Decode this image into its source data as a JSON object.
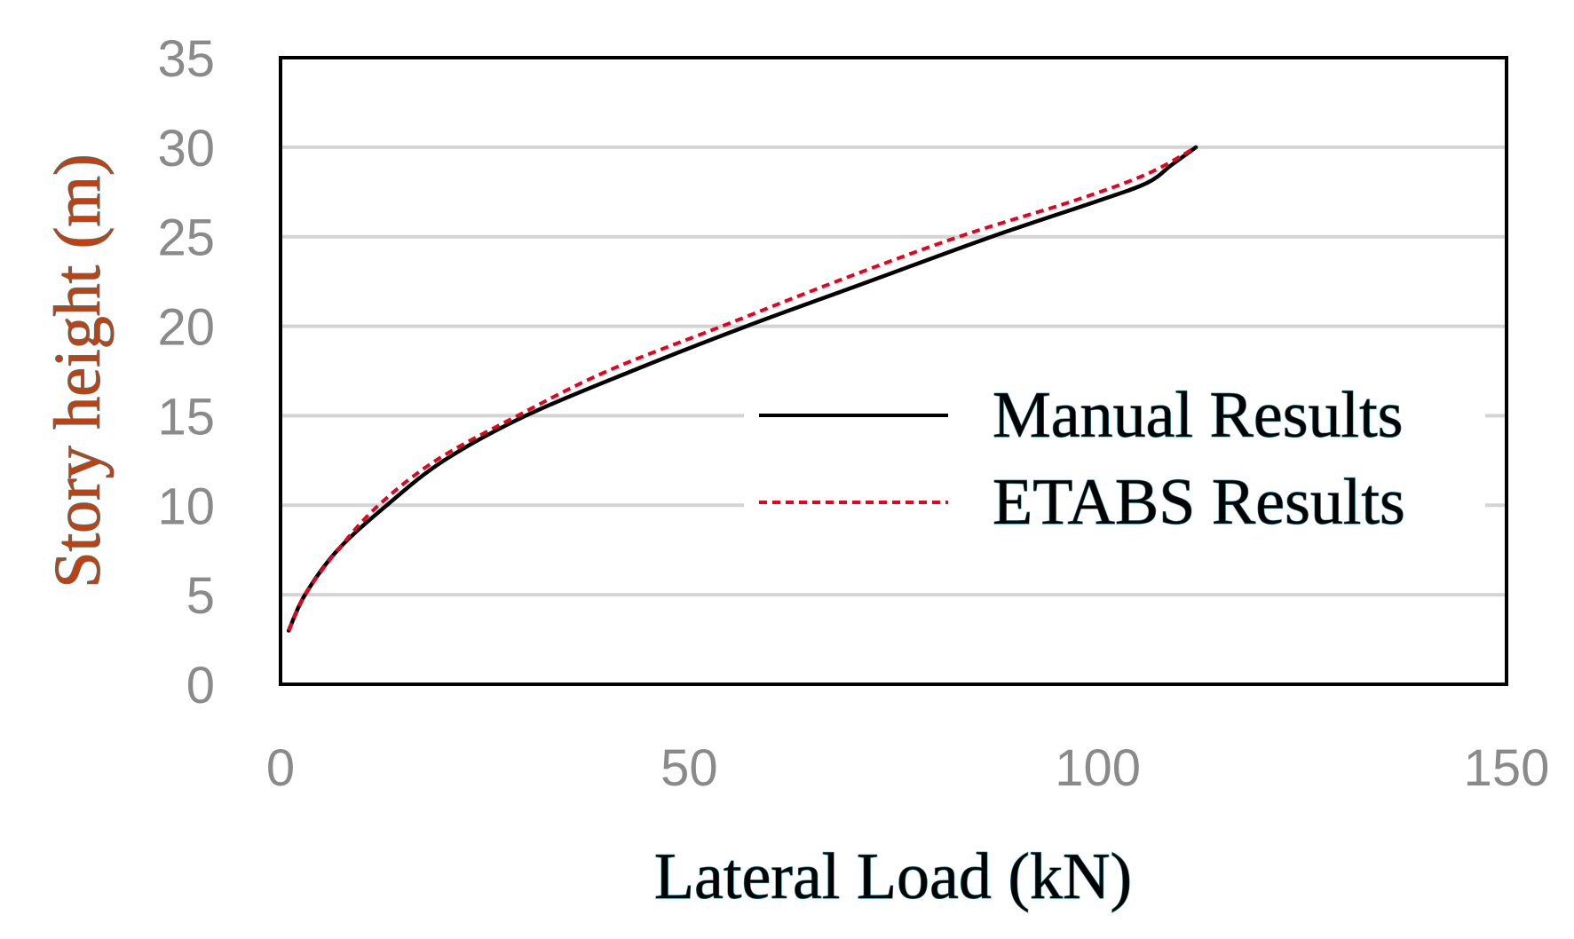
{
  "chart_data": {
    "type": "line",
    "title": "",
    "xlabel": "Lateral Load (kN)",
    "ylabel": "Story height (m)",
    "xlim": [
      0,
      150
    ],
    "ylim": [
      0,
      35
    ],
    "xticks": [
      "0",
      "50",
      "100",
      "150"
    ],
    "yticks": [
      "0",
      "5",
      "10",
      "15",
      "20",
      "25",
      "30",
      "35"
    ],
    "grid": "horizontal",
    "legend_position": "right",
    "series": [
      {
        "name": "Manual Results",
        "color": "#000000",
        "style": "solid",
        "x": [
          1,
          3,
          7,
          13,
          20,
          30,
          43,
          57,
          72,
          87,
          100,
          106,
          109,
          112
        ],
        "y": [
          3,
          5,
          7.5,
          10,
          12.5,
          15,
          17.5,
          20,
          22.5,
          25,
          27,
          28,
          29,
          30
        ]
      },
      {
        "name": "ETABS Results",
        "color": "#e8001c",
        "style": "dashed",
        "x": [
          1,
          3,
          7,
          12,
          19,
          29,
          40,
          54,
          68,
          83,
          97,
          106,
          112
        ],
        "y": [
          3,
          5,
          7.5,
          10,
          12.5,
          15,
          17.5,
          20,
          22.5,
          25,
          27,
          28.5,
          30
        ]
      }
    ]
  }
}
